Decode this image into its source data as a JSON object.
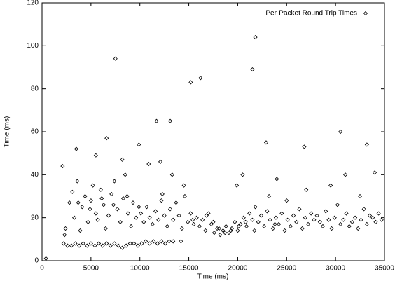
{
  "chart_data": {
    "type": "scatter",
    "xlabel": "Time (ms)",
    "ylabel": "Time (ms)",
    "xlim": [
      0,
      35000
    ],
    "ylim": [
      0,
      120
    ],
    "xticks": [
      0,
      5000,
      10000,
      15000,
      20000,
      25000,
      30000,
      35000
    ],
    "yticks": [
      0,
      20,
      40,
      60,
      80,
      100,
      120
    ],
    "legend": "upper right",
    "series": [
      {
        "name": "Per-Packet Round Trip Times",
        "color": "#000000",
        "x": [
          2200,
          2600,
          3000,
          3400,
          3800,
          4200,
          4600,
          5000,
          5400,
          5800,
          6200,
          6600,
          7000,
          7400,
          7800,
          8200,
          8600,
          9000,
          9400,
          9800,
          10200,
          10600,
          11000,
          11400,
          11800,
          12200,
          12600,
          13000,
          13400,
          14200,
          2100,
          2400,
          2800,
          3100,
          3300,
          3600,
          3900,
          4100,
          4400,
          4700,
          5000,
          5200,
          5500,
          5700,
          6000,
          6300,
          6500,
          6800,
          7100,
          7400,
          7700,
          8000,
          8300,
          8500,
          8800,
          9100,
          9300,
          9600,
          9900,
          2300,
          10100,
          10400,
          10700,
          11000,
          11300,
          11600,
          11900,
          12200,
          12500,
          12800,
          13100,
          13400,
          13700,
          14000,
          14300,
          14600,
          14900,
          15200,
          15500,
          15800,
          16100,
          16400,
          16700,
          17000,
          17300,
          17600,
          17900,
          18200,
          18500,
          18800,
          19100,
          19400,
          19700,
          20000,
          20300,
          20600,
          20900,
          21200,
          21500,
          21800,
          22100,
          22400,
          22700,
          23000,
          23300,
          23600,
          23900,
          24200,
          24500,
          24800,
          25100,
          25400,
          25700,
          26000,
          26300,
          26600,
          26900,
          27200,
          27500,
          27800,
          28100,
          28400,
          28700,
          29000,
          29300,
          29600,
          29900,
          30200,
          30500,
          30800,
          31100,
          31400,
          31700,
          32000,
          32300,
          32600,
          32900,
          33200,
          33500,
          33800,
          34100,
          34400,
          34700,
          23200,
          25000,
          27000,
          29500,
          31000,
          32500,
          34000,
          7500,
          15200,
          16200,
          21500,
          21800,
          30500,
          33200,
          6600,
          3500,
          11700,
          13100,
          9900,
          26800,
          22900,
          5500,
          8200,
          400,
          20500,
          19900,
          24000,
          15400,
          16800,
          17500,
          18100,
          18700,
          19300,
          20100,
          20800,
          21700,
          23800,
          3700,
          4900,
          6100,
          7300,
          8700,
          10900,
          12100,
          13300,
          14500,
          12300
        ],
        "values": [
          8,
          7,
          7,
          8,
          7,
          8,
          7,
          8,
          7,
          8,
          7,
          8,
          7,
          8,
          7,
          6,
          7,
          8,
          8,
          7,
          8,
          9,
          8,
          9,
          8,
          9,
          8,
          9,
          9,
          9,
          44,
          15,
          27,
          32,
          20,
          37,
          14,
          25,
          30,
          18,
          28,
          35,
          22,
          19,
          33,
          26,
          15,
          21,
          31,
          37,
          24,
          18,
          29,
          40,
          22,
          16,
          27,
          20,
          25,
          12,
          22,
          18,
          25,
          20,
          17,
          23,
          19,
          28,
          21,
          16,
          24,
          19,
          27,
          21,
          15,
          30,
          18,
          22,
          17,
          20,
          16,
          19,
          14,
          22,
          17,
          13,
          15,
          12,
          14,
          16,
          13,
          15,
          18,
          14,
          17,
          20,
          16,
          22,
          19,
          25,
          18,
          21,
          16,
          23,
          19,
          15,
          20,
          17,
          22,
          14,
          19,
          16,
          21,
          18,
          24,
          15,
          20,
          17,
          22,
          19,
          21,
          18,
          16,
          23,
          19,
          15,
          20,
          26,
          17,
          19,
          22,
          16,
          18,
          20,
          15,
          19,
          24,
          17,
          21,
          20,
          18,
          22,
          19,
          30,
          28,
          33,
          35,
          40,
          30,
          41,
          94,
          83,
          85,
          89,
          104,
          60,
          54,
          57,
          52,
          65,
          65,
          54,
          53,
          55,
          49,
          47,
          1,
          40,
          35,
          38,
          19,
          21,
          18,
          15,
          13,
          14,
          16,
          18,
          14,
          17,
          27,
          24,
          29,
          26,
          30,
          45,
          46,
          40,
          35,
          31
        ]
      }
    ]
  }
}
